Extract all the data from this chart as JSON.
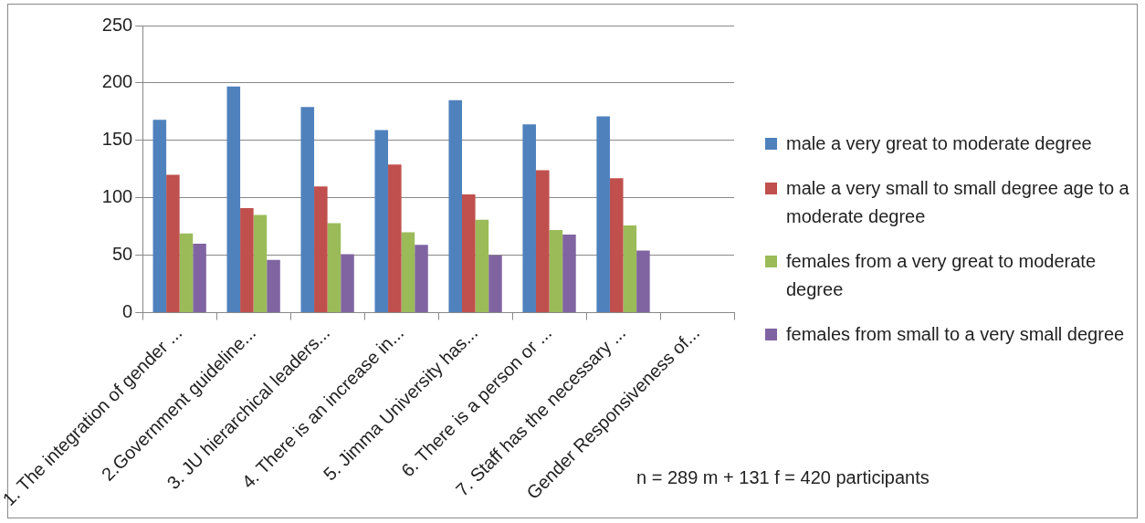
{
  "chart_data": {
    "type": "bar",
    "categories": [
      "1. The integration of gender ...",
      "2.Government guideline...",
      "3. JU hierarchical leaders...",
      "4. There is an increase in...",
      "5. Jimma University has...",
      "6. There is a person or ...",
      "7. Staff has the necessary ...",
      "Gender Responsiveness of..."
    ],
    "series": [
      {
        "name": "male a very great to moderate degree",
        "color": "#4f81bd",
        "values": [
          168,
          197,
          179,
          159,
          185,
          164,
          171,
          null
        ]
      },
      {
        "name": "male a very small to small degree age to a moderate degree",
        "color": "#c0504d",
        "values": [
          120,
          91,
          110,
          129,
          103,
          124,
          117,
          null
        ]
      },
      {
        "name": "females from a very great to moderate degree",
        "color": "#9bbb59",
        "values": [
          69,
          85,
          78,
          70,
          81,
          72,
          76,
          null
        ]
      },
      {
        "name": "females from small to a very small degree",
        "color": "#8064a2",
        "values": [
          60,
          46,
          51,
          59,
          50,
          68,
          54,
          null
        ]
      }
    ],
    "ylim": [
      0,
      250
    ],
    "yticks": [
      0,
      50,
      100,
      150,
      200,
      250
    ],
    "grid": "y",
    "legend": "right",
    "annotations": [
      "n = 289 m + 131 f = 420 participants"
    ]
  }
}
